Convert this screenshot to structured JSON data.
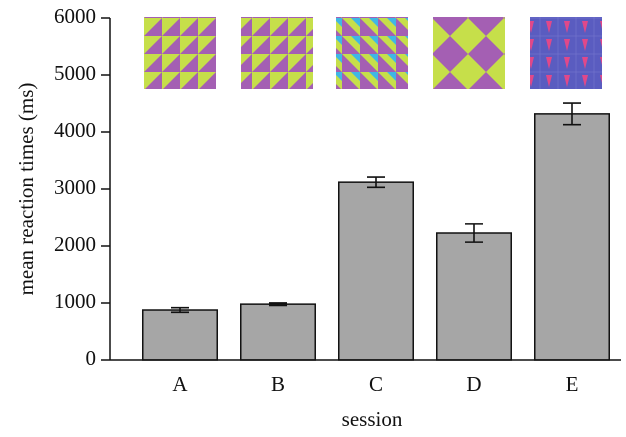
{
  "chart_data": {
    "type": "bar",
    "xlabel": "session",
    "ylabel": "mean reaction times (ms)",
    "categories": [
      "A",
      "B",
      "C",
      "D",
      "E"
    ],
    "values": [
      877,
      980,
      3120,
      2228,
      4318
    ],
    "errors": [
      40,
      22,
      90,
      160,
      190
    ],
    "color": "#a6a6a6",
    "ylim": [
      0,
      6000
    ],
    "yticks": [
      0,
      1000,
      2000,
      3000,
      4000,
      5000,
      6000
    ],
    "grid": false
  }
}
